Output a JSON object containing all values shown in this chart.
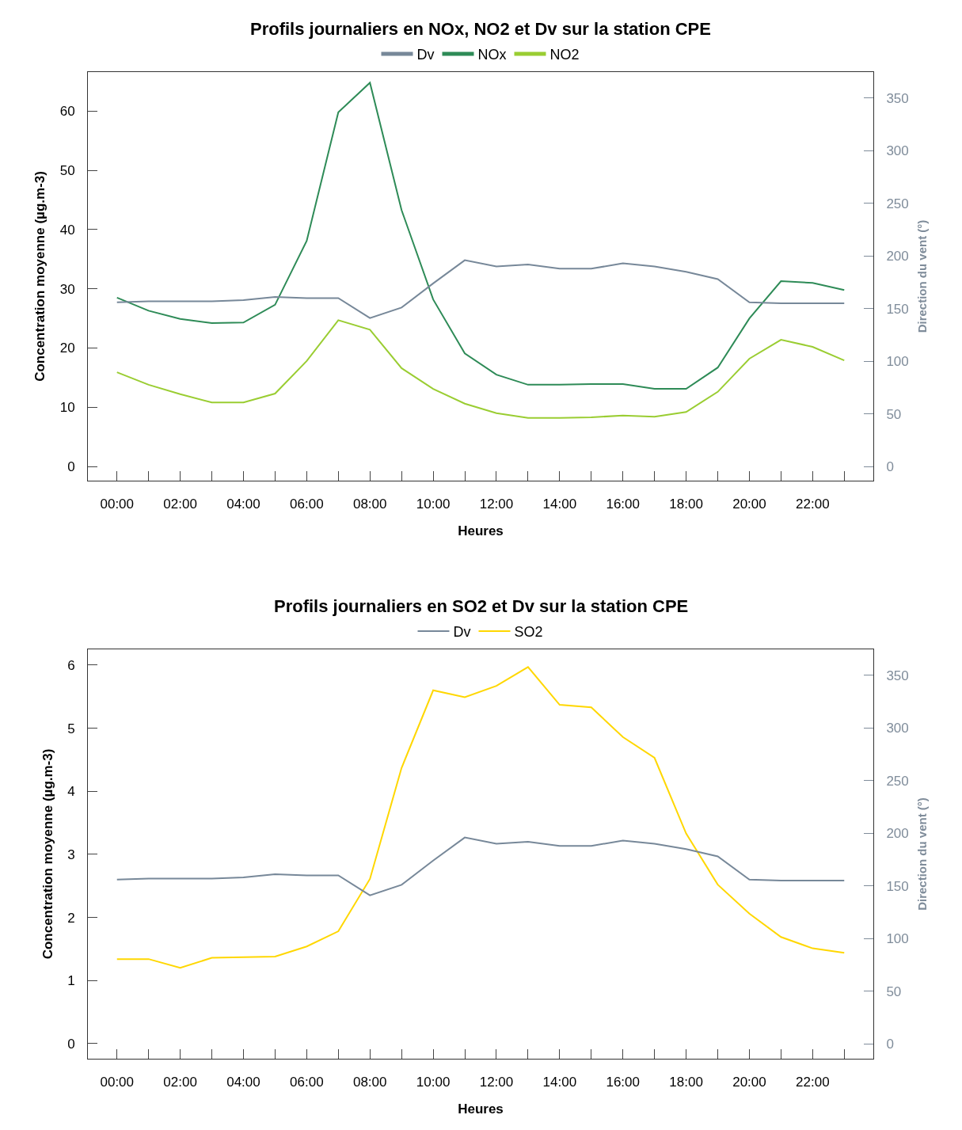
{
  "chart_data": [
    {
      "type": "line",
      "title": "Profils journaliers en NOx, NO2 et Dv sur la station CPE",
      "xlabel": "Heures",
      "ylabel": "Concentration moyenne (µg.m-3)",
      "y2label": "Direction du vent (°)",
      "x": [
        0,
        1,
        2,
        3,
        4,
        5,
        6,
        7,
        8,
        9,
        10,
        11,
        12,
        13,
        14,
        15,
        16,
        17,
        18,
        19,
        20,
        21,
        22,
        23
      ],
      "xlim": [
        -0.92,
        23.92
      ],
      "xticks": [
        {
          "value": 0,
          "label": "00:00"
        },
        {
          "value": 1,
          "label": null
        },
        {
          "value": 2,
          "label": "02:00"
        },
        {
          "value": 3,
          "label": null
        },
        {
          "value": 4,
          "label": "04:00"
        },
        {
          "value": 5,
          "label": null
        },
        {
          "value": 6,
          "label": "06:00"
        },
        {
          "value": 7,
          "label": null
        },
        {
          "value": 8,
          "label": "08:00"
        },
        {
          "value": 9,
          "label": null
        },
        {
          "value": 10,
          "label": "10:00"
        },
        {
          "value": 11,
          "label": null
        },
        {
          "value": 12,
          "label": "12:00"
        },
        {
          "value": 13,
          "label": null
        },
        {
          "value": 14,
          "label": "14:00"
        },
        {
          "value": 15,
          "label": null
        },
        {
          "value": 16,
          "label": "16:00"
        },
        {
          "value": 17,
          "label": null
        },
        {
          "value": 18,
          "label": "18:00"
        },
        {
          "value": 19,
          "label": null
        },
        {
          "value": 20,
          "label": "20:00"
        },
        {
          "value": 21,
          "label": null
        },
        {
          "value": 22,
          "label": "22:00"
        },
        {
          "value": 23,
          "label": null
        }
      ],
      "ylim": [
        -2.4,
        66.6
      ],
      "yticks": [
        0,
        10,
        20,
        30,
        40,
        50,
        60
      ],
      "y2lim": [
        -13.5,
        374.8
      ],
      "y2ticks": [
        0,
        50,
        100,
        150,
        200,
        250,
        300,
        350
      ],
      "legend": "top",
      "series": [
        {
          "name": "Dv",
          "color": "#778899",
          "axis": "y2",
          "values": [
            156,
            157,
            157,
            157,
            158,
            161,
            160,
            160,
            141,
            151,
            174,
            196,
            190,
            192,
            188,
            188,
            193,
            190,
            185,
            178,
            156,
            155,
            155,
            155
          ]
        },
        {
          "name": "NOx",
          "color": "#2e8b57",
          "values": [
            28.5,
            26.3,
            24.9,
            24.2,
            24.3,
            27.3,
            38.1,
            59.8,
            64.8,
            43.3,
            28.2,
            19.1,
            15.5,
            13.8,
            13.8,
            13.9,
            13.9,
            13.1,
            13.1,
            16.7,
            25.0,
            31.3,
            31.0,
            29.8
          ]
        },
        {
          "name": "NO2",
          "color": "#9acd32",
          "values": [
            15.9,
            13.8,
            12.2,
            10.8,
            10.8,
            12.3,
            17.8,
            24.7,
            23.1,
            16.6,
            13.1,
            10.6,
            9.0,
            8.2,
            8.2,
            8.3,
            8.6,
            8.4,
            9.2,
            12.6,
            18.2,
            21.4,
            20.2,
            17.9
          ]
        }
      ]
    },
    {
      "type": "line",
      "title": "Profils journaliers en SO2 et Dv sur la station CPE",
      "xlabel": "Heures",
      "ylabel": "Concentration moyenne (µg.m-3)",
      "y2label": "Direction du vent (°)",
      "x": [
        0,
        1,
        2,
        3,
        4,
        5,
        6,
        7,
        8,
        9,
        10,
        11,
        12,
        13,
        14,
        15,
        16,
        17,
        18,
        19,
        20,
        21,
        22,
        23
      ],
      "xlim": [
        -0.92,
        23.92
      ],
      "xticks": [
        {
          "value": 0,
          "label": "00:00"
        },
        {
          "value": 1,
          "label": null
        },
        {
          "value": 2,
          "label": "02:00"
        },
        {
          "value": 3,
          "label": null
        },
        {
          "value": 4,
          "label": "04:00"
        },
        {
          "value": 5,
          "label": null
        },
        {
          "value": 6,
          "label": "06:00"
        },
        {
          "value": 7,
          "label": null
        },
        {
          "value": 8,
          "label": "08:00"
        },
        {
          "value": 9,
          "label": null
        },
        {
          "value": 10,
          "label": "10:00"
        },
        {
          "value": 11,
          "label": null
        },
        {
          "value": 12,
          "label": "12:00"
        },
        {
          "value": 13,
          "label": null
        },
        {
          "value": 14,
          "label": "14:00"
        },
        {
          "value": 15,
          "label": null
        },
        {
          "value": 16,
          "label": "16:00"
        },
        {
          "value": 17,
          "label": null
        },
        {
          "value": 18,
          "label": "18:00"
        },
        {
          "value": 19,
          "label": null
        },
        {
          "value": 20,
          "label": "20:00"
        },
        {
          "value": 21,
          "label": null
        },
        {
          "value": 22,
          "label": "22:00"
        },
        {
          "value": 23,
          "label": null
        }
      ],
      "ylim": [
        -0.24,
        6.25
      ],
      "yticks": [
        0,
        1,
        2,
        3,
        4,
        5,
        6
      ],
      "y2lim": [
        -14.3,
        374.8
      ],
      "y2ticks": [
        0,
        50,
        100,
        150,
        200,
        250,
        300,
        350
      ],
      "legend": "top",
      "series": [
        {
          "name": "Dv",
          "color": "#778899",
          "axis": "y2",
          "values": [
            156,
            157,
            157,
            157,
            158,
            161,
            160,
            160,
            141,
            151,
            174,
            196,
            190,
            192,
            188,
            188,
            193,
            190,
            185,
            178,
            156,
            155,
            155,
            155
          ]
        },
        {
          "name": "SO2",
          "color": "#ffd700",
          "values": [
            1.34,
            1.34,
            1.2,
            1.36,
            1.37,
            1.38,
            1.54,
            1.78,
            2.61,
            4.37,
            5.6,
            5.49,
            5.67,
            5.97,
            5.37,
            5.33,
            4.86,
            4.53,
            3.33,
            2.52,
            2.06,
            1.69,
            1.51,
            1.44
          ]
        }
      ]
    }
  ]
}
